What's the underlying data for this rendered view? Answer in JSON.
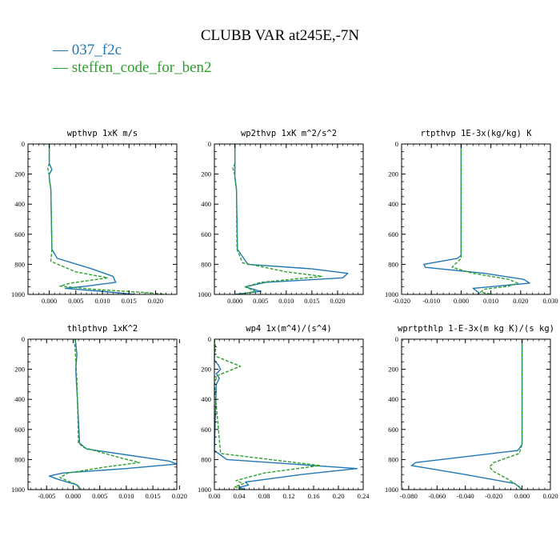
{
  "figure": {
    "title": "CLUBB VAR at245E,-7N",
    "legend": [
      {
        "label": "— 037_f2c",
        "color": "#1f77b4"
      },
      {
        "label": "— steffen_code_for_ben2",
        "color": "#2ca02c"
      }
    ]
  },
  "chart_data": [
    {
      "type": "line",
      "title": "wpthvp   1xK m/s",
      "xticks": [
        "0.000",
        "0.005",
        "0.010",
        "0.015",
        "0.020"
      ],
      "xlim": [
        -0.004,
        0.024
      ],
      "ylim": [
        1000,
        0
      ],
      "yticks": [
        "0",
        "200",
        "400",
        "600",
        "800",
        "1000"
      ],
      "series": [
        {
          "name": "037_f2c",
          "color": "#1f77b4",
          "style": "solid",
          "x": [
            0,
            0,
            0.0005,
            0,
            0,
            0.0003,
            0.0005,
            0.0015,
            0.008,
            0.012,
            0.0125,
            0.007,
            0.003,
            0.01,
            0.016
          ],
          "y": [
            0,
            130,
            170,
            200,
            225,
            300,
            700,
            760,
            830,
            880,
            920,
            945,
            960,
            980,
            1000
          ]
        },
        {
          "name": "steffen_code_for_ben2",
          "color": "#2ca02c",
          "style": "dashed",
          "x": [
            0,
            0,
            -0.0003,
            0,
            0,
            0.0003,
            0.0005,
            0.0003,
            0.005,
            0.011,
            0.004,
            0.002,
            0.008,
            0.019,
            0.022
          ],
          "y": [
            0,
            130,
            160,
            210,
            230,
            300,
            700,
            780,
            850,
            890,
            925,
            945,
            965,
            990,
            1000
          ]
        }
      ]
    },
    {
      "type": "line",
      "title": "wp2thvp   1xK m^2/s^2",
      "xticks": [
        "0.000",
        "0.005",
        "0.010",
        "0.015",
        "0.020"
      ],
      "xlim": [
        -0.004,
        0.025
      ],
      "ylim": [
        1000,
        0
      ],
      "yticks": [
        "0",
        "200",
        "400",
        "600",
        "800",
        "1000"
      ],
      "series": [
        {
          "name": "037_f2c",
          "color": "#1f77b4",
          "style": "solid",
          "x": [
            0,
            0,
            0,
            0,
            0.0003,
            0.0005,
            0.0025,
            0.015,
            0.022,
            0.021,
            0.006,
            0.002,
            0.005,
            0.0
          ],
          "y": [
            0,
            140,
            180,
            220,
            300,
            700,
            800,
            830,
            860,
            890,
            920,
            950,
            980,
            1000
          ]
        },
        {
          "name": "steffen_code_for_ben2",
          "color": "#2ca02c",
          "style": "dashed",
          "x": [
            0,
            0,
            -0.0004,
            0,
            0,
            0.0003,
            0.0004,
            0.0015,
            0.01,
            0.017,
            0.005,
            0.002,
            0.004,
            0.001
          ],
          "y": [
            0,
            130,
            160,
            210,
            230,
            300,
            700,
            790,
            850,
            880,
            920,
            950,
            980,
            1000
          ]
        }
      ]
    },
    {
      "type": "line",
      "title": "rtpthvp   1E-3x(kg/kg) K",
      "xticks": [
        "-0.020",
        "-0.010",
        "0.000",
        "0.010",
        "0.020",
        "0.030"
      ],
      "xlim": [
        -0.02,
        0.03
      ],
      "ylim": [
        1000,
        0
      ],
      "yticks": [
        "0",
        "200",
        "400",
        "600",
        "800",
        "1000"
      ],
      "series": [
        {
          "name": "037_f2c",
          "color": "#1f77b4",
          "style": "solid",
          "x": [
            0,
            0,
            0,
            -0.0012,
            -0.0125,
            -0.012,
            0.008,
            0.021,
            0.023,
            0.012,
            0.004,
            0.006,
            0.0055
          ],
          "y": [
            0,
            300,
            740,
            760,
            800,
            820,
            860,
            900,
            925,
            945,
            960,
            990,
            1000
          ]
        },
        {
          "name": "steffen_code_for_ben2",
          "color": "#2ca02c",
          "style": "dashed",
          "x": [
            0,
            0,
            0,
            -0.001,
            -0.003,
            0.004,
            0.016,
            0.019,
            0.016,
            0.008,
            0.0065,
            0.0105
          ],
          "y": [
            0,
            300,
            760,
            780,
            820,
            860,
            900,
            925,
            945,
            965,
            985,
            1000
          ]
        }
      ]
    },
    {
      "type": "line",
      "title": "thlpthvp   1xK^2",
      "xticks": [
        "-0.005",
        "0.000",
        "0.005",
        "0.010",
        "0.015",
        "0.020"
      ],
      "xlim": [
        -0.0085,
        0.0195
      ],
      "ylim": [
        1000,
        0
      ],
      "yticks": [
        "0",
        "200",
        "400",
        "600",
        "800",
        "1000"
      ],
      "series": [
        {
          "name": "037_f2c",
          "color": "#1f77b4",
          "style": "solid",
          "x": [
            0.0003,
            0.0005,
            0.0007,
            0.0005,
            0.0006,
            0.0008,
            0.0012,
            0.0025,
            0.018,
            0.0195,
            0.01,
            -0.002,
            -0.0045,
            -0.003,
            0.0008,
            0.0015
          ],
          "y": [
            0,
            30,
            100,
            200,
            280,
            400,
            690,
            730,
            810,
            830,
            860,
            890,
            910,
            930,
            970,
            1000
          ]
        },
        {
          "name": "steffen_code_for_ben2",
          "color": "#2ca02c",
          "style": "dashed",
          "x": [
            0.0005,
            0.0003,
            0.0005,
            0.0007,
            0.0008,
            0.001,
            0.002,
            0.009,
            0.0125,
            0.006,
            -0.001,
            -0.0025,
            0.0005,
            0.0015
          ],
          "y": [
            0,
            30,
            150,
            270,
            400,
            690,
            720,
            790,
            820,
            850,
            890,
            920,
            965,
            1000
          ]
        }
      ]
    },
    {
      "type": "line",
      "title": "wp4   1x(m^4)/(s^4)",
      "xticks": [
        "0.00",
        "0.04",
        "0.08",
        "0.12",
        "0.16",
        "0.20",
        "0.24"
      ],
      "xlim": [
        0,
        0.24
      ],
      "ylim": [
        1000,
        0
      ],
      "yticks": [
        "0",
        "200",
        "400",
        "600",
        "800",
        "1000"
      ],
      "series": [
        {
          "name": "037_f2c",
          "color": "#1f77b4",
          "style": "solid",
          "x": [
            0,
            0,
            0.006,
            0.01,
            0.003,
            0.008,
            0.003,
            0,
            0.02,
            0.23,
            0.14,
            0.05,
            0.055,
            0.04,
            0.05
          ],
          "y": [
            0,
            140,
            170,
            200,
            230,
            260,
            300,
            740,
            800,
            860,
            900,
            950,
            970,
            985,
            1000
          ]
        },
        {
          "name": "steffen_code_for_ben2",
          "color": "#2ca02c",
          "style": "dashed",
          "x": [
            0,
            0.002,
            0,
            0.042,
            0.006,
            0.002,
            0,
            0.01,
            0.17,
            0.08,
            0.035,
            0.047,
            0.033,
            0.045
          ],
          "y": [
            0,
            60,
            110,
            180,
            240,
            270,
            300,
            760,
            840,
            890,
            940,
            960,
            980,
            1000
          ]
        }
      ]
    },
    {
      "type": "line",
      "title": "wprtpthlp   1-E-3x(m kg K)/(s kg)",
      "xticks": [
        "-0.080",
        "-0.060",
        "-0.040",
        "-0.020",
        "0.000",
        "0.020"
      ],
      "xlim": [
        -0.085,
        0.02
      ],
      "ylim": [
        1000,
        0
      ],
      "yticks": [
        "0",
        "200",
        "400",
        "600",
        "800",
        "1000"
      ],
      "series": [
        {
          "name": "037_f2c",
          "color": "#1f77b4",
          "style": "solid",
          "x": [
            0,
            0,
            -0.003,
            -0.075,
            -0.078,
            -0.04,
            -0.005,
            0
          ],
          "y": [
            0,
            700,
            740,
            820,
            840,
            900,
            960,
            1000
          ]
        },
        {
          "name": "steffen_code_for_ben2",
          "color": "#2ca02c",
          "style": "dashed",
          "x": [
            0,
            0,
            -0.002,
            -0.02,
            -0.023,
            -0.02,
            -0.01,
            -0.002,
            0
          ],
          "y": [
            0,
            700,
            760,
            820,
            850,
            880,
            930,
            980,
            1000
          ]
        }
      ]
    }
  ]
}
